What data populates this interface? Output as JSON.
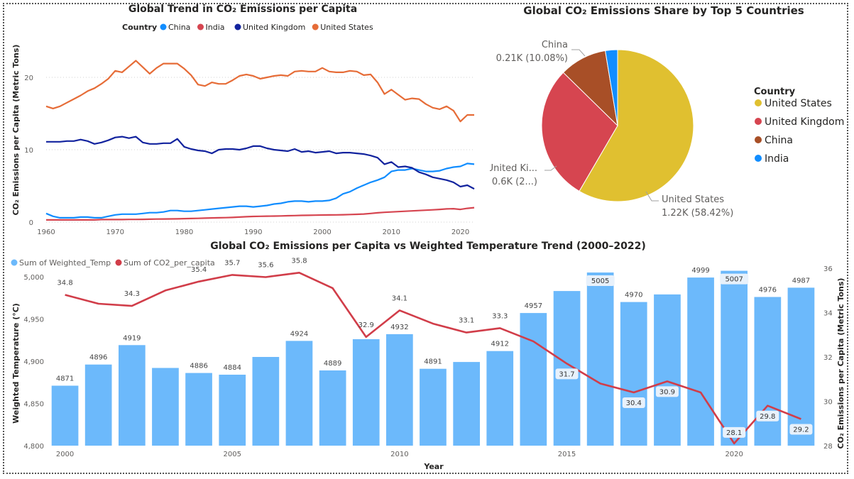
{
  "chart_data": [
    {
      "type": "line",
      "title": "Global Trend in CO₂ Emissions per Capita",
      "ylabel": "CO₂ Emissions per Capita (Metric Tons)",
      "xlabel": "",
      "legend_title": "Country",
      "legend_position": "top",
      "x": [
        1960,
        1961,
        1962,
        1963,
        1964,
        1965,
        1966,
        1967,
        1968,
        1969,
        1970,
        1971,
        1972,
        1973,
        1974,
        1975,
        1976,
        1977,
        1978,
        1979,
        1980,
        1981,
        1982,
        1983,
        1984,
        1985,
        1986,
        1987,
        1988,
        1989,
        1990,
        1991,
        1992,
        1993,
        1994,
        1995,
        1996,
        1997,
        1998,
        1999,
        2000,
        2001,
        2002,
        2003,
        2004,
        2005,
        2006,
        2007,
        2008,
        2009,
        2010,
        2011,
        2012,
        2013,
        2014,
        2015,
        2016,
        2017,
        2018,
        2019,
        2020,
        2021,
        2022
      ],
      "x_ticks": [
        "1960",
        "1970",
        "1980",
        "1990",
        "2000",
        "2010",
        "2020"
      ],
      "y_ticks": [
        "0",
        "10",
        "20"
      ],
      "ylim": [
        0,
        25
      ],
      "grid": true,
      "series": [
        {
          "name": "China",
          "color": "#118dff",
          "values": [
            1.2,
            0.8,
            0.6,
            0.6,
            0.6,
            0.7,
            0.7,
            0.6,
            0.6,
            0.8,
            1.0,
            1.1,
            1.1,
            1.1,
            1.2,
            1.3,
            1.3,
            1.4,
            1.6,
            1.6,
            1.5,
            1.5,
            1.6,
            1.7,
            1.8,
            1.9,
            2.0,
            2.1,
            2.2,
            2.2,
            2.1,
            2.2,
            2.3,
            2.5,
            2.6,
            2.8,
            2.9,
            2.9,
            2.8,
            2.9,
            2.9,
            3.0,
            3.3,
            3.9,
            4.2,
            4.7,
            5.1,
            5.5,
            5.8,
            6.2,
            7.0,
            7.2,
            7.2,
            7.4,
            7.2,
            7.0,
            7.0,
            7.1,
            7.4,
            7.6,
            7.7,
            8.1,
            8.0
          ]
        },
        {
          "name": "India",
          "color": "#d64550",
          "values": [
            0.3,
            0.3,
            0.3,
            0.3,
            0.3,
            0.3,
            0.3,
            0.3,
            0.35,
            0.35,
            0.35,
            0.35,
            0.37,
            0.37,
            0.38,
            0.4,
            0.42,
            0.43,
            0.44,
            0.45,
            0.48,
            0.5,
            0.52,
            0.55,
            0.58,
            0.6,
            0.62,
            0.65,
            0.7,
            0.75,
            0.78,
            0.8,
            0.82,
            0.83,
            0.85,
            0.88,
            0.9,
            0.93,
            0.94,
            0.96,
            0.98,
            0.99,
            1.0,
            1.02,
            1.05,
            1.08,
            1.12,
            1.2,
            1.28,
            1.35,
            1.4,
            1.45,
            1.5,
            1.55,
            1.6,
            1.65,
            1.7,
            1.75,
            1.82,
            1.85,
            1.75,
            1.9,
            2.0
          ]
        },
        {
          "name": "United Kingdom",
          "color": "#12239e",
          "values": [
            11.1,
            11.1,
            11.1,
            11.2,
            11.2,
            11.4,
            11.2,
            10.8,
            11.0,
            11.3,
            11.7,
            11.8,
            11.6,
            11.8,
            11.0,
            10.8,
            10.8,
            10.9,
            10.9,
            11.5,
            10.4,
            10.1,
            9.9,
            9.8,
            9.5,
            10.0,
            10.1,
            10.1,
            10.0,
            10.2,
            10.5,
            10.5,
            10.2,
            10.0,
            9.9,
            9.8,
            10.1,
            9.7,
            9.8,
            9.6,
            9.7,
            9.8,
            9.5,
            9.6,
            9.6,
            9.5,
            9.4,
            9.2,
            8.9,
            8.0,
            8.3,
            7.6,
            7.7,
            7.5,
            6.9,
            6.6,
            6.2,
            6.0,
            5.8,
            5.5,
            4.9,
            5.1,
            4.6
          ]
        },
        {
          "name": "United States",
          "color": "#e66c37",
          "values": [
            16.0,
            15.7,
            16.0,
            16.5,
            17.0,
            17.5,
            18.1,
            18.5,
            19.1,
            19.8,
            20.9,
            20.7,
            21.5,
            22.3,
            21.4,
            20.5,
            21.3,
            21.9,
            21.9,
            21.9,
            21.2,
            20.3,
            19.0,
            18.8,
            19.3,
            19.1,
            19.1,
            19.6,
            20.2,
            20.4,
            20.2,
            19.8,
            20.0,
            20.2,
            20.3,
            20.2,
            20.8,
            20.9,
            20.8,
            20.8,
            21.3,
            20.8,
            20.7,
            20.7,
            20.9,
            20.8,
            20.3,
            20.4,
            19.3,
            17.7,
            18.3,
            17.6,
            16.9,
            17.1,
            17.0,
            16.3,
            15.8,
            15.6,
            16.0,
            15.4,
            13.9,
            14.8,
            14.8
          ]
        }
      ]
    },
    {
      "type": "pie",
      "title": "Global CO₂ Emissions Share by Top 5 Countries",
      "legend_title": "Country",
      "legend_position": "right",
      "slices": [
        {
          "name": "United States",
          "value": 1.22,
          "value_label": "1.22K (58.42%)",
          "percent": 58.42,
          "color": "#e0c030"
        },
        {
          "name": "United Kingdom",
          "value": 0.6,
          "value_label": "0.6K (2...)",
          "display_name": "United Ki...",
          "percent": 28.9,
          "color": "#d64550"
        },
        {
          "name": "China",
          "value": 0.21,
          "value_label": "0.21K (10.08%)",
          "percent": 10.08,
          "color": "#a84f27"
        },
        {
          "name": "India",
          "value": 0.055,
          "percent": 2.6,
          "color": "#118dff"
        }
      ]
    },
    {
      "type": "combo",
      "title": "Global CO₂ Emissions per Capita vs Weighted Temperature Trend (2000–2022)",
      "xlabel": "Year",
      "ylabel": "Weighted Temperature (°C)",
      "y2label": "CO₂ Emissions per Capita (Metric Tons)",
      "legend_position": "top-left",
      "x": [
        2000,
        2001,
        2002,
        2003,
        2004,
        2005,
        2006,
        2007,
        2008,
        2009,
        2010,
        2011,
        2012,
        2013,
        2014,
        2015,
        2016,
        2017,
        2018,
        2019,
        2020,
        2021,
        2022
      ],
      "x_ticks": [
        "2000",
        "2005",
        "2010",
        "2015",
        "2020"
      ],
      "y_ticks": [
        "4,800",
        "4,850",
        "4,900",
        "4,950",
        "5,000"
      ],
      "y2_ticks": [
        "28",
        "30",
        "32",
        "34",
        "36"
      ],
      "ylim": [
        4800,
        5010
      ],
      "y2lim": [
        28,
        36
      ],
      "series": [
        {
          "name": "Sum of Weighted_Temp",
          "type": "bar",
          "color": "#6cb9fb",
          "values": [
            4871,
            4896,
            4919,
            4892,
            4886,
            4884,
            4905,
            4924,
            4889,
            4926,
            4932,
            4891,
            4899,
            4912,
            4957,
            4983,
            5005,
            4970,
            4979,
            4999,
            5007,
            4976,
            4987
          ],
          "labels": [
            "4871",
            "4896",
            "4919",
            "",
            "4886",
            "4884",
            "",
            "4924",
            "4889",
            "",
            "4932",
            "4891",
            "",
            "4912",
            "4957",
            "",
            "5005",
            "4970",
            "",
            "4999",
            "5007",
            "4976",
            "4987"
          ]
        },
        {
          "name": "Sum of CO2_per_capita",
          "type": "line",
          "color": "#d13d49",
          "values": [
            34.8,
            34.4,
            34.3,
            35.0,
            35.4,
            35.7,
            35.6,
            35.8,
            35.1,
            32.9,
            34.1,
            33.5,
            33.1,
            33.3,
            32.7,
            31.7,
            30.8,
            30.4,
            30.9,
            30.4,
            28.1,
            29.8,
            29.2
          ],
          "labels": [
            "34.8",
            "",
            "34.3",
            "",
            "35.4",
            "35.7",
            "35.6",
            "35.8",
            "",
            "32.9",
            "34.1",
            "",
            "33.1",
            "33.3",
            "",
            "31.7",
            "",
            "30.4",
            "30.9",
            "",
            "28.1",
            "29.8",
            "29.2"
          ]
        }
      ]
    }
  ]
}
